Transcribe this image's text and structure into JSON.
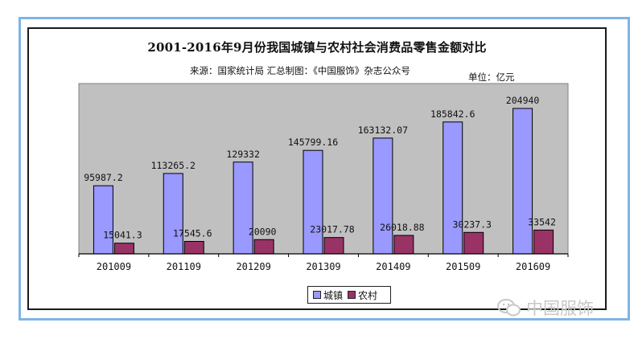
{
  "header": {
    "title": "2001-2016年9月份我国城镇与农村社会消费品零售金额对比",
    "source": "来源：国家统计局   汇总制图：《中国服饰》杂志公众号",
    "unit": "单位：亿元"
  },
  "watermark": {
    "text": "中国服饰",
    "icon": "wechat-icon"
  },
  "colors": {
    "urban": "#9999ff",
    "rural": "#993366",
    "frame": "#7fb4e6"
  },
  "chart_data": {
    "type": "bar",
    "title": "2001-2016年9月份我国城镇与农村社会消费品零售金额对比",
    "xlabel": "",
    "ylabel": "",
    "unit": "亿元",
    "categories": [
      "201009",
      "201109",
      "201209",
      "201309",
      "201409",
      "201509",
      "201609"
    ],
    "series": [
      {
        "name": "城镇",
        "values": [
          95987.2,
          113265.2,
          129332,
          145799.16,
          163132.07,
          185842.6,
          204940
        ],
        "labels": [
          "95987.2",
          "113265.2",
          "129332",
          "145799.16",
          "163132.07",
          "185842.6",
          "204940"
        ]
      },
      {
        "name": "农村",
        "values": [
          15041.3,
          17545.6,
          20090,
          23017.78,
          26018.88,
          30237.3,
          33542
        ],
        "labels": [
          "15041.3",
          "17545.6",
          "20090",
          "23017.78",
          "26018.88",
          "30237.3",
          "33542"
        ]
      }
    ],
    "ylim": [
      0,
      240000
    ],
    "grid": false,
    "legend": "bottom"
  }
}
